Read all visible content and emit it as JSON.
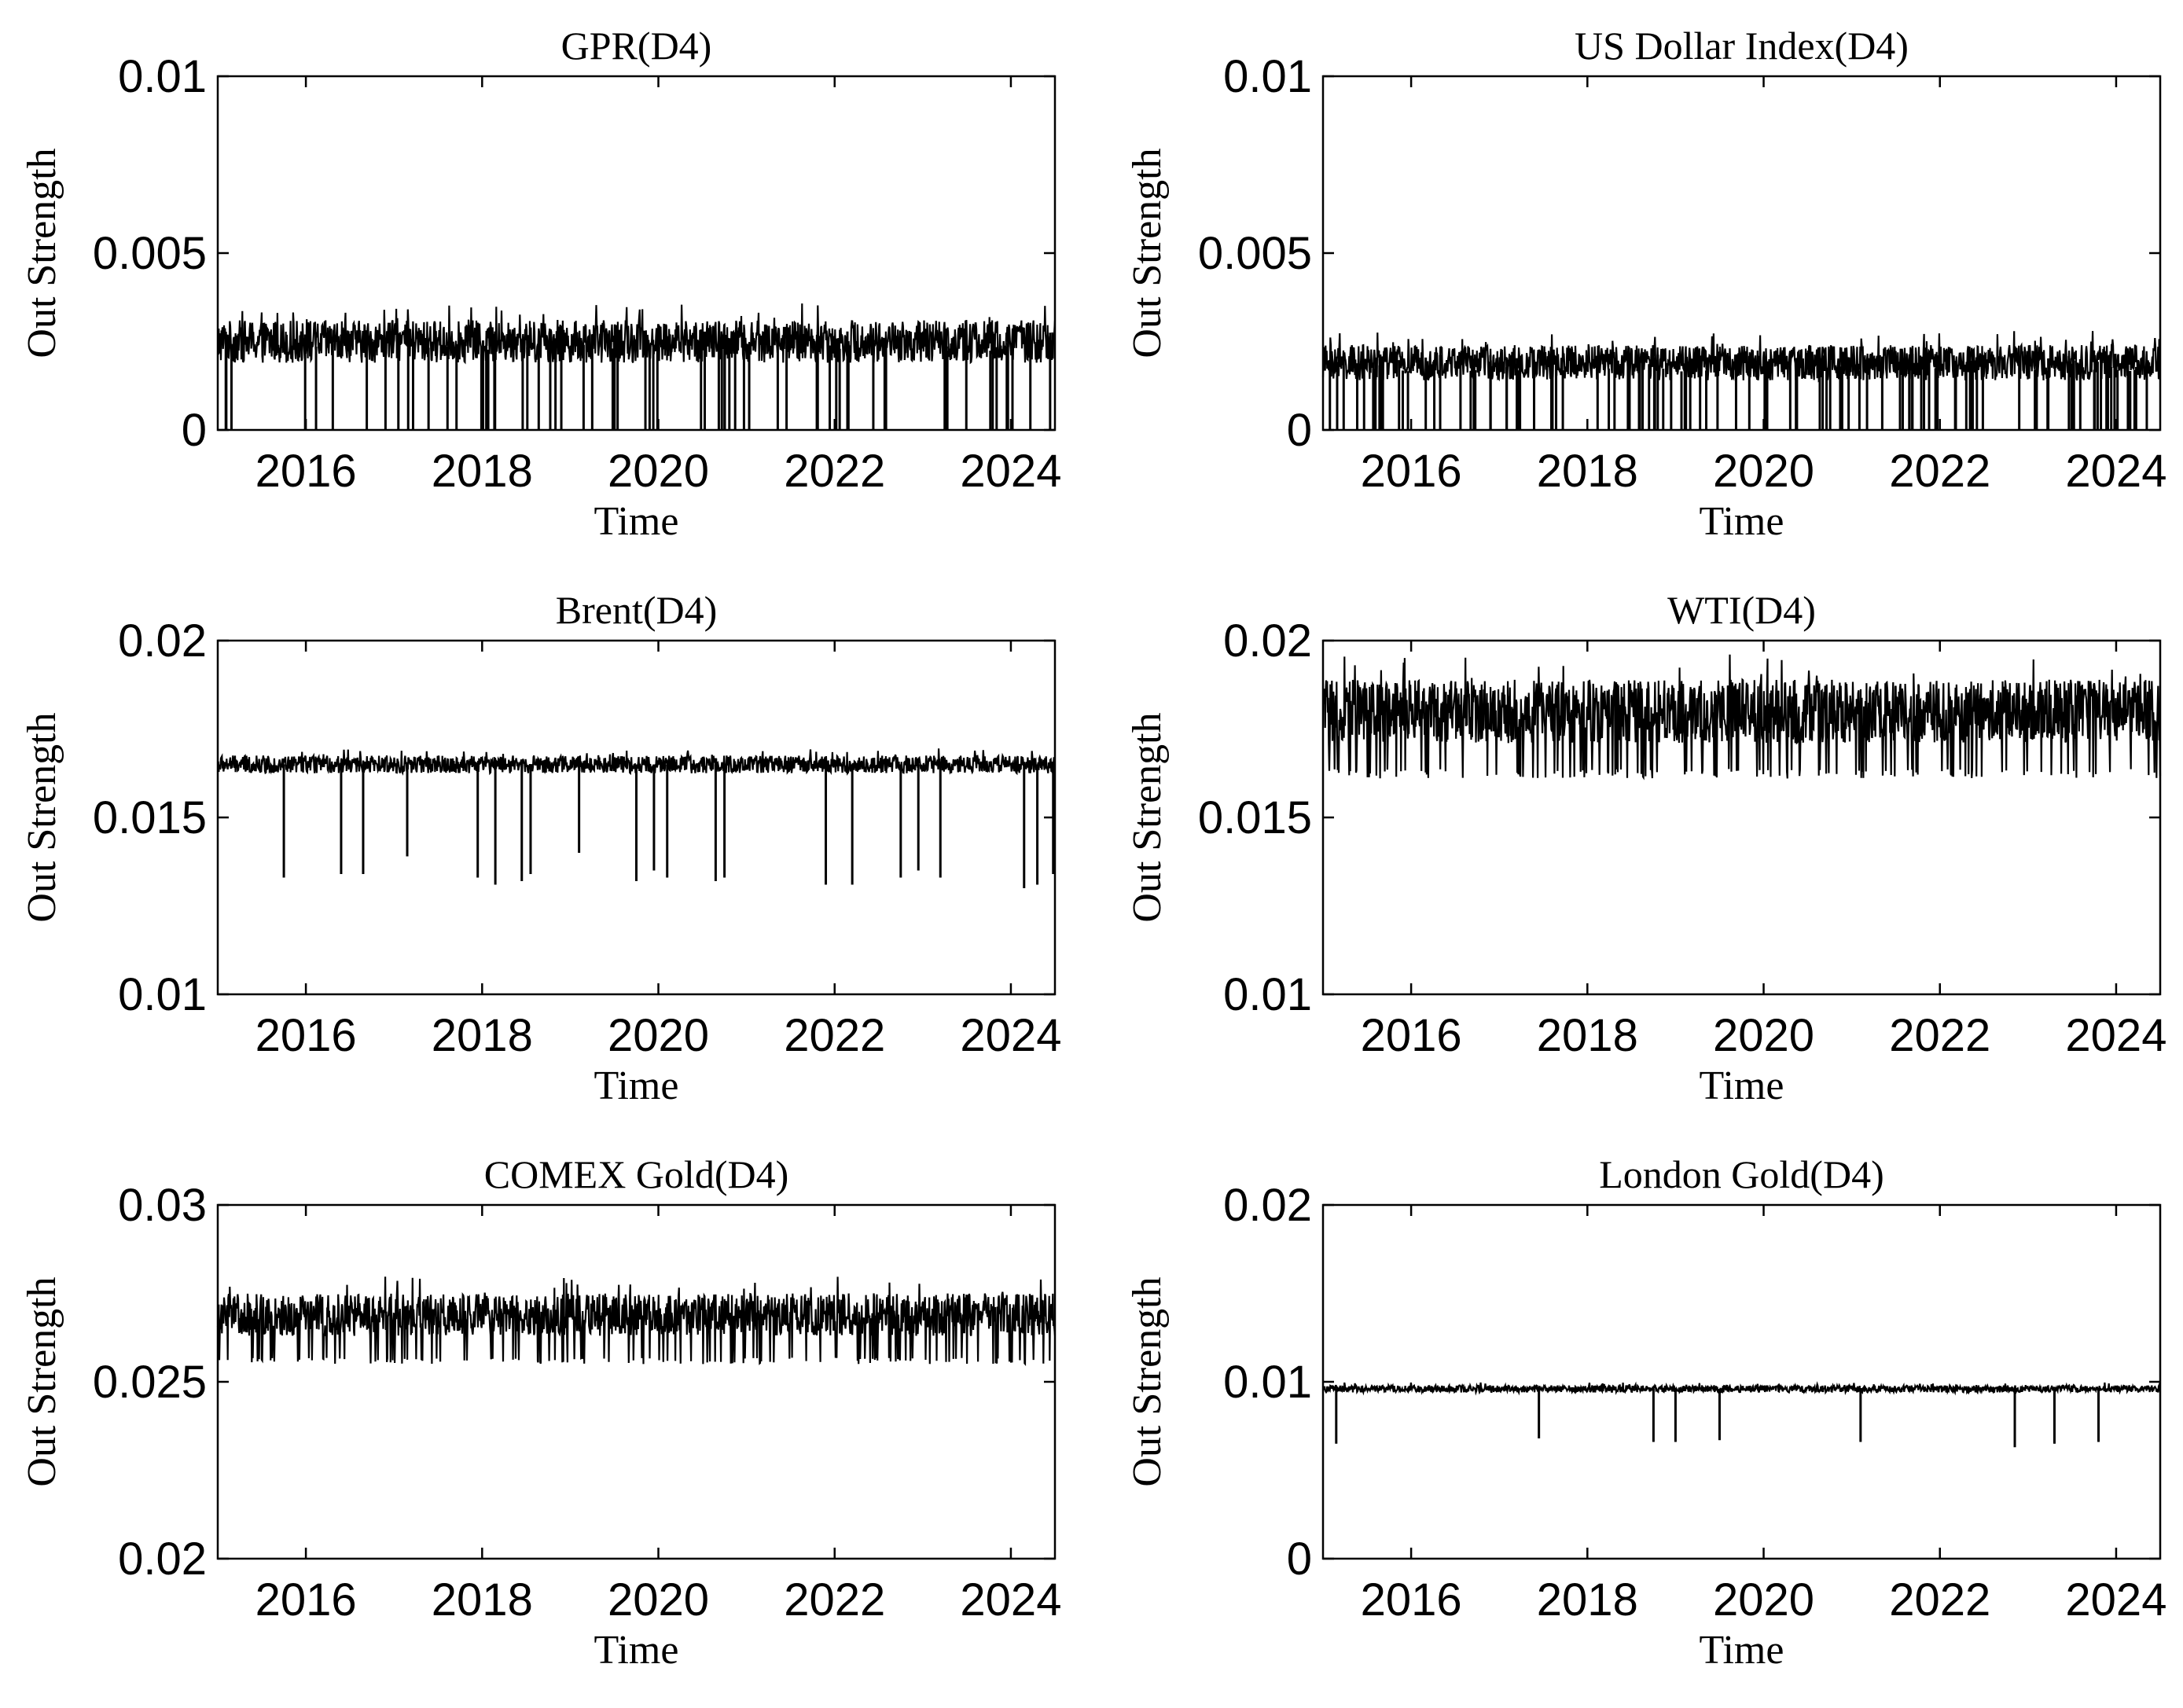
{
  "chart_data": [
    {
      "type": "line",
      "title": "GPR(D4)",
      "xlabel": "Time",
      "ylabel": "Out Strength",
      "xlim": [
        2015.0,
        2024.5
      ],
      "ylim": [
        0,
        0.01
      ],
      "xticks": [
        2016,
        2018,
        2020,
        2022,
        2024
      ],
      "xtick_labels": [
        "2016",
        "2018",
        "2020",
        "2022",
        "2024"
      ],
      "yticks": [
        0,
        0.005,
        0.01
      ],
      "ytick_labels": [
        "0",
        "0.005",
        "0.01"
      ],
      "grid": false,
      "series_color": "#000000",
      "profile": {
        "base": 0.0025,
        "amp": 0.0006,
        "max": 0.0044,
        "spike_count": 70,
        "spike_level": 0.0
      }
    },
    {
      "type": "line",
      "title": "US Dollar Index(D4)",
      "xlabel": "Time",
      "ylabel": "Out Strength",
      "xlim": [
        2015.0,
        2024.5
      ],
      "ylim": [
        0,
        0.01
      ],
      "xticks": [
        2016,
        2018,
        2020,
        2022,
        2024
      ],
      "xtick_labels": [
        "2016",
        "2018",
        "2020",
        "2022",
        "2024"
      ],
      "yticks": [
        0,
        0.005,
        0.01
      ],
      "ytick_labels": [
        "0",
        "0.005",
        "0.01"
      ],
      "grid": false,
      "series_color": "#000000",
      "profile": {
        "base": 0.0019,
        "amp": 0.0005,
        "max": 0.0035,
        "spike_count": 120,
        "spike_level": 0.0
      }
    },
    {
      "type": "line",
      "title": "Brent(D4)",
      "xlabel": "Time",
      "ylabel": "Out Strength",
      "xlim": [
        2015.0,
        2024.5
      ],
      "ylim": [
        0.01,
        0.02
      ],
      "xticks": [
        2016,
        2018,
        2020,
        2022,
        2024
      ],
      "xtick_labels": [
        "2016",
        "2018",
        "2020",
        "2022",
        "2024"
      ],
      "yticks": [
        0.01,
        0.015,
        0.02
      ],
      "ytick_labels": [
        "0.01",
        "0.015",
        "0.02"
      ],
      "grid": false,
      "series_color": "#000000",
      "profile": {
        "base": 0.0165,
        "amp": 0.00025,
        "max": 0.0175
      },
      "dips": [
        {
          "x": 2015.75,
          "y": 0.0133
        },
        {
          "x": 2016.4,
          "y": 0.0134
        },
        {
          "x": 2016.65,
          "y": 0.0134
        },
        {
          "x": 2017.15,
          "y": 0.0139
        },
        {
          "x": 2017.95,
          "y": 0.0133
        },
        {
          "x": 2018.15,
          "y": 0.0131
        },
        {
          "x": 2018.45,
          "y": 0.0132
        },
        {
          "x": 2018.55,
          "y": 0.0134
        },
        {
          "x": 2019.1,
          "y": 0.014
        },
        {
          "x": 2019.75,
          "y": 0.0132
        },
        {
          "x": 2019.95,
          "y": 0.0135
        },
        {
          "x": 2020.1,
          "y": 0.0133
        },
        {
          "x": 2020.65,
          "y": 0.0132
        },
        {
          "x": 2020.75,
          "y": 0.0133
        },
        {
          "x": 2021.9,
          "y": 0.0131
        },
        {
          "x": 2022.2,
          "y": 0.0131
        },
        {
          "x": 2022.75,
          "y": 0.0133
        },
        {
          "x": 2022.95,
          "y": 0.0135
        },
        {
          "x": 2023.2,
          "y": 0.0133
        },
        {
          "x": 2024.15,
          "y": 0.013
        },
        {
          "x": 2024.3,
          "y": 0.0131
        },
        {
          "x": 2024.48,
          "y": 0.0134
        }
      ]
    },
    {
      "type": "line",
      "title": "WTI(D4)",
      "xlabel": "Time",
      "ylabel": "Out Strength",
      "xlim": [
        2015.0,
        2024.5
      ],
      "ylim": [
        0.01,
        0.02
      ],
      "xticks": [
        2016,
        2018,
        2020,
        2022,
        2024
      ],
      "xtick_labels": [
        "2016",
        "2018",
        "2020",
        "2022",
        "2024"
      ],
      "yticks": [
        0.01,
        0.015,
        0.02
      ],
      "ytick_labels": [
        "0.01",
        "0.015",
        "0.02"
      ],
      "grid": false,
      "series_color": "#000000",
      "profile": {
        "base": 0.018,
        "amp": 0.0009,
        "max": 0.0198,
        "min": 0.0161
      }
    },
    {
      "type": "line",
      "title": "COMEX Gold(D4)",
      "xlabel": "Time",
      "ylabel": "Out Strength",
      "xlim": [
        2015.0,
        2024.5
      ],
      "ylim": [
        0.02,
        0.03
      ],
      "xticks": [
        2016,
        2018,
        2020,
        2022,
        2024
      ],
      "xtick_labels": [
        "2016",
        "2018",
        "2020",
        "2022",
        "2024"
      ],
      "yticks": [
        0.02,
        0.025,
        0.03
      ],
      "ytick_labels": [
        "0.02",
        "0.025",
        "0.03"
      ],
      "grid": false,
      "series_color": "#000000",
      "profile": {
        "base": 0.0269,
        "amp": 0.0006,
        "max": 0.0282,
        "min": 0.0255
      }
    },
    {
      "type": "line",
      "title": "London Gold(D4)",
      "xlabel": "Time",
      "ylabel": "Out Strength",
      "xlim": [
        2015.0,
        2024.5
      ],
      "ylim": [
        0,
        0.02
      ],
      "xticks": [
        2016,
        2018,
        2020,
        2022,
        2024
      ],
      "xtick_labels": [
        "2016",
        "2018",
        "2020",
        "2022",
        "2024"
      ],
      "yticks": [
        0,
        0.01,
        0.02
      ],
      "ytick_labels": [
        "0",
        "0.01",
        "0.02"
      ],
      "grid": false,
      "series_color": "#000000",
      "profile": {
        "base": 0.0096,
        "amp": 0.0002,
        "max": 0.0102
      },
      "dips": [
        {
          "x": 2015.15,
          "y": 0.0065
        },
        {
          "x": 2017.45,
          "y": 0.0068
        },
        {
          "x": 2018.75,
          "y": 0.0066
        },
        {
          "x": 2019.0,
          "y": 0.0066
        },
        {
          "x": 2019.5,
          "y": 0.0067
        },
        {
          "x": 2021.1,
          "y": 0.0066
        },
        {
          "x": 2022.85,
          "y": 0.0063
        },
        {
          "x": 2023.3,
          "y": 0.0065
        },
        {
          "x": 2023.8,
          "y": 0.0066
        }
      ]
    }
  ]
}
